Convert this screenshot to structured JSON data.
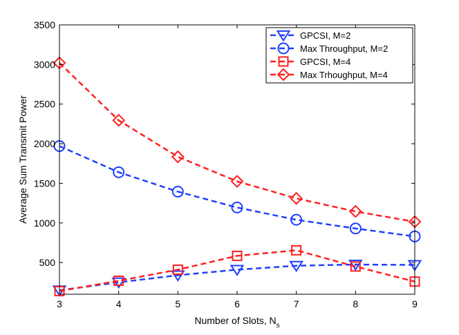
{
  "chart_data": {
    "type": "line",
    "title": "",
    "xlabel": "Number of Slots, N",
    "xlabel_subscript": "s",
    "ylabel": "Average Sum Transmit Power",
    "xlim": [
      3,
      9
    ],
    "ylim": [
      100,
      3500
    ],
    "xticks": [
      3,
      4,
      5,
      6,
      7,
      8,
      9
    ],
    "yticks": [
      500,
      1000,
      1500,
      2000,
      2500,
      3000,
      3500
    ],
    "grid": false,
    "legend_position": "top-right",
    "x": [
      3,
      4,
      5,
      6,
      7,
      8,
      9
    ],
    "series": [
      {
        "name": "GPCSI, M=2",
        "color": "#1f3fff",
        "marker": "triangle-down",
        "linestyle": "dashed",
        "values": [
          150,
          250,
          340,
          410,
          460,
          475,
          470
        ]
      },
      {
        "name": "Max Throughput, M=2",
        "color": "#1f3fff",
        "marker": "circle",
        "linestyle": "dashed",
        "values": [
          1970,
          1640,
          1395,
          1195,
          1040,
          930,
          830
        ]
      },
      {
        "name": "GPCSI, M=4",
        "color": "#ff1f1f",
        "marker": "square",
        "linestyle": "dashed",
        "values": [
          140,
          270,
          410,
          585,
          655,
          450,
          260
        ]
      },
      {
        "name": "Max Trhoughput, M=4",
        "color": "#ff1f1f",
        "marker": "diamond",
        "linestyle": "dashed",
        "values": [
          3020,
          2295,
          1835,
          1525,
          1310,
          1145,
          1015
        ]
      }
    ]
  }
}
